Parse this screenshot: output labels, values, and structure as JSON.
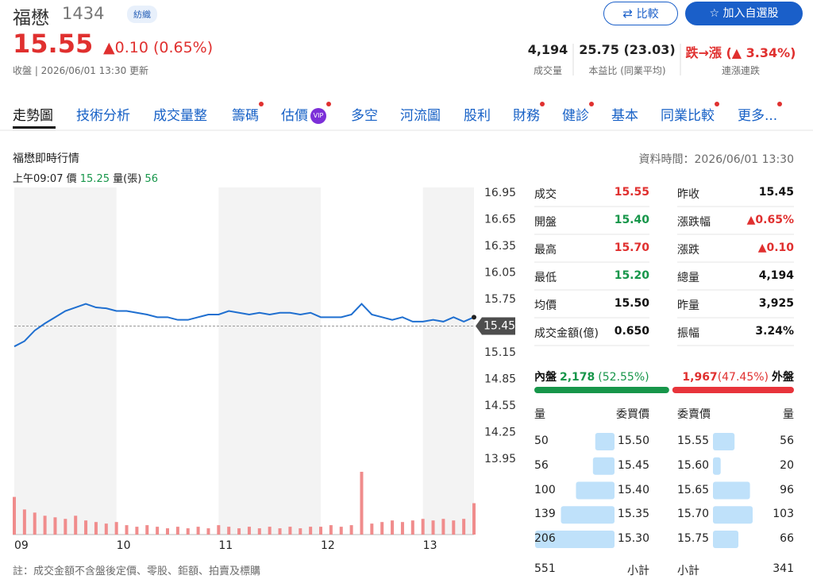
{
  "header": {
    "name": "福懋",
    "code": "1434",
    "industry": "紡織",
    "price": "15.55",
    "change": "▲0.10 (0.65%)",
    "status": "收盤 | 2026/06/01 13:30 更新",
    "compare_button": "比較",
    "watchlist_button": "加入自選股",
    "stats": [
      {
        "value": "4,194",
        "label": "成交量"
      },
      {
        "value": "25.75 (23.03)",
        "label": "本益比 (同業平均)"
      },
      {
        "value": "跌→漲 (▲ 3.34%)",
        "label": "連漲連跌"
      }
    ]
  },
  "tabs": [
    {
      "label": "走勢圖"
    },
    {
      "label": "技術分析"
    },
    {
      "label": "成交量整"
    },
    {
      "label": "籌碼",
      "dot": true
    },
    {
      "label": "估價",
      "badge": "VIP",
      "dot": true
    },
    {
      "label": "多空"
    },
    {
      "label": "河流圖"
    },
    {
      "label": "股利"
    },
    {
      "label": "財務",
      "dot": true
    },
    {
      "label": "健診",
      "dot": true
    },
    {
      "label": "基本"
    },
    {
      "label": "同業比較",
      "dot": true
    },
    {
      "label": "更多...",
      "dot": true
    }
  ],
  "section": {
    "title": "福懋即時行情",
    "data_time": "資料時間：2026/06/01 13:30",
    "hover": {
      "time": "上午09:07",
      "price_label": "價",
      "price": "15.25",
      "volume_label": "量(張)",
      "volume": "56"
    }
  },
  "chart_data": {
    "type": "line",
    "x": [
      9,
      9.1,
      9.2,
      9.3,
      9.4,
      9.5,
      9.6,
      9.7,
      9.8,
      9.9,
      10,
      10.1,
      10.2,
      10.3,
      10.4,
      10.5,
      10.6,
      10.7,
      10.8,
      10.9,
      11,
      11.1,
      11.2,
      11.3,
      11.4,
      11.5,
      11.6,
      11.7,
      11.8,
      11.9,
      12,
      12.1,
      12.2,
      12.3,
      12.4,
      12.5,
      12.6,
      12.7,
      12.8,
      12.9,
      13,
      13.1,
      13.2,
      13.3,
      13.4,
      13.5
    ],
    "series": [
      {
        "color": "#1f6fd0",
        "values": [
          15.22,
          15.28,
          15.4,
          15.48,
          15.55,
          15.62,
          15.66,
          15.7,
          15.66,
          15.65,
          15.62,
          15.62,
          15.6,
          15.58,
          15.55,
          15.55,
          15.52,
          15.52,
          15.55,
          15.58,
          15.58,
          15.62,
          15.6,
          15.58,
          15.6,
          15.58,
          15.6,
          15.6,
          15.58,
          15.6,
          15.55,
          15.55,
          15.55,
          15.58,
          15.7,
          15.58,
          15.55,
          15.52,
          15.55,
          15.5,
          15.5,
          15.52,
          15.5,
          15.55,
          15.5,
          15.55
        ]
      }
    ],
    "volume": {
      "color": "#f08c8c",
      "ylim": [
        0,
        210
      ],
      "values": [
        120,
        80,
        70,
        60,
        55,
        50,
        60,
        45,
        40,
        35,
        40,
        30,
        25,
        30,
        25,
        20,
        25,
        20,
        25,
        20,
        30,
        25,
        20,
        25,
        20,
        25,
        20,
        25,
        20,
        25,
        25,
        30,
        25,
        30,
        200,
        35,
        40,
        45,
        40,
        45,
        50,
        45,
        50,
        45,
        50,
        100
      ]
    },
    "xlim": [
      9,
      13.5
    ],
    "xticks": [
      {
        "value": 9,
        "label": "09"
      },
      {
        "value": 10,
        "label": "10"
      },
      {
        "value": 11,
        "label": "11"
      },
      {
        "value": 12,
        "label": "12"
      },
      {
        "value": 13,
        "label": "13"
      }
    ],
    "ylim": [
      13.95,
      16.95
    ],
    "yticks": [
      16.95,
      16.65,
      16.35,
      16.05,
      15.75,
      15.15,
      14.85,
      14.55,
      14.25,
      13.95
    ],
    "reference": 15.45
  },
  "quote_table": {
    "rows": [
      [
        "成交",
        "15.55",
        "昨收",
        "15.45"
      ],
      [
        "開盤",
        "15.40",
        "漲跌幅",
        "▲0.65%"
      ],
      [
        "最高",
        "15.70",
        "漲跌",
        "▲0.10"
      ],
      [
        "最低",
        "15.20",
        "總量",
        "4,194"
      ],
      [
        "均價",
        "15.50",
        "昨量",
        "3,925"
      ],
      [
        "成交金額(億)",
        "0.650",
        "振幅",
        "3.24%"
      ]
    ]
  },
  "inner_outer": {
    "inner_label": "內盤",
    "inner_volume": "2,178",
    "inner_pct": {
      "value": 52.55,
      "label": "(52.55%)"
    },
    "outer_volume": "1,967",
    "outer_pct": {
      "value": 47.45,
      "label": "(47.45%)"
    },
    "outer_label": "外盤"
  },
  "order_book": {
    "headers": [
      "量",
      "委買價",
      "委賣價",
      "量"
    ],
    "bids": [
      {
        "volume": 50,
        "price": "15.50"
      },
      {
        "volume": 56,
        "price": "15.45"
      },
      {
        "volume": 100,
        "price": "15.40"
      },
      {
        "volume": 139,
        "price": "15.35"
      },
      {
        "volume": 206,
        "price": "15.30"
      }
    ],
    "asks": [
      {
        "price": "15.55",
        "volume": 56
      },
      {
        "price": "15.60",
        "volume": 20
      },
      {
        "price": "15.65",
        "volume": 96
      },
      {
        "price": "15.70",
        "volume": 103
      },
      {
        "price": "15.75",
        "volume": 66
      }
    ],
    "bid_total": 551,
    "bid_total_label": "小計",
    "ask_total_label": "小計",
    "ask_total": 341
  },
  "note": "註：成交金額不含盤後定價、零股、鉅額、拍賣及標購"
}
